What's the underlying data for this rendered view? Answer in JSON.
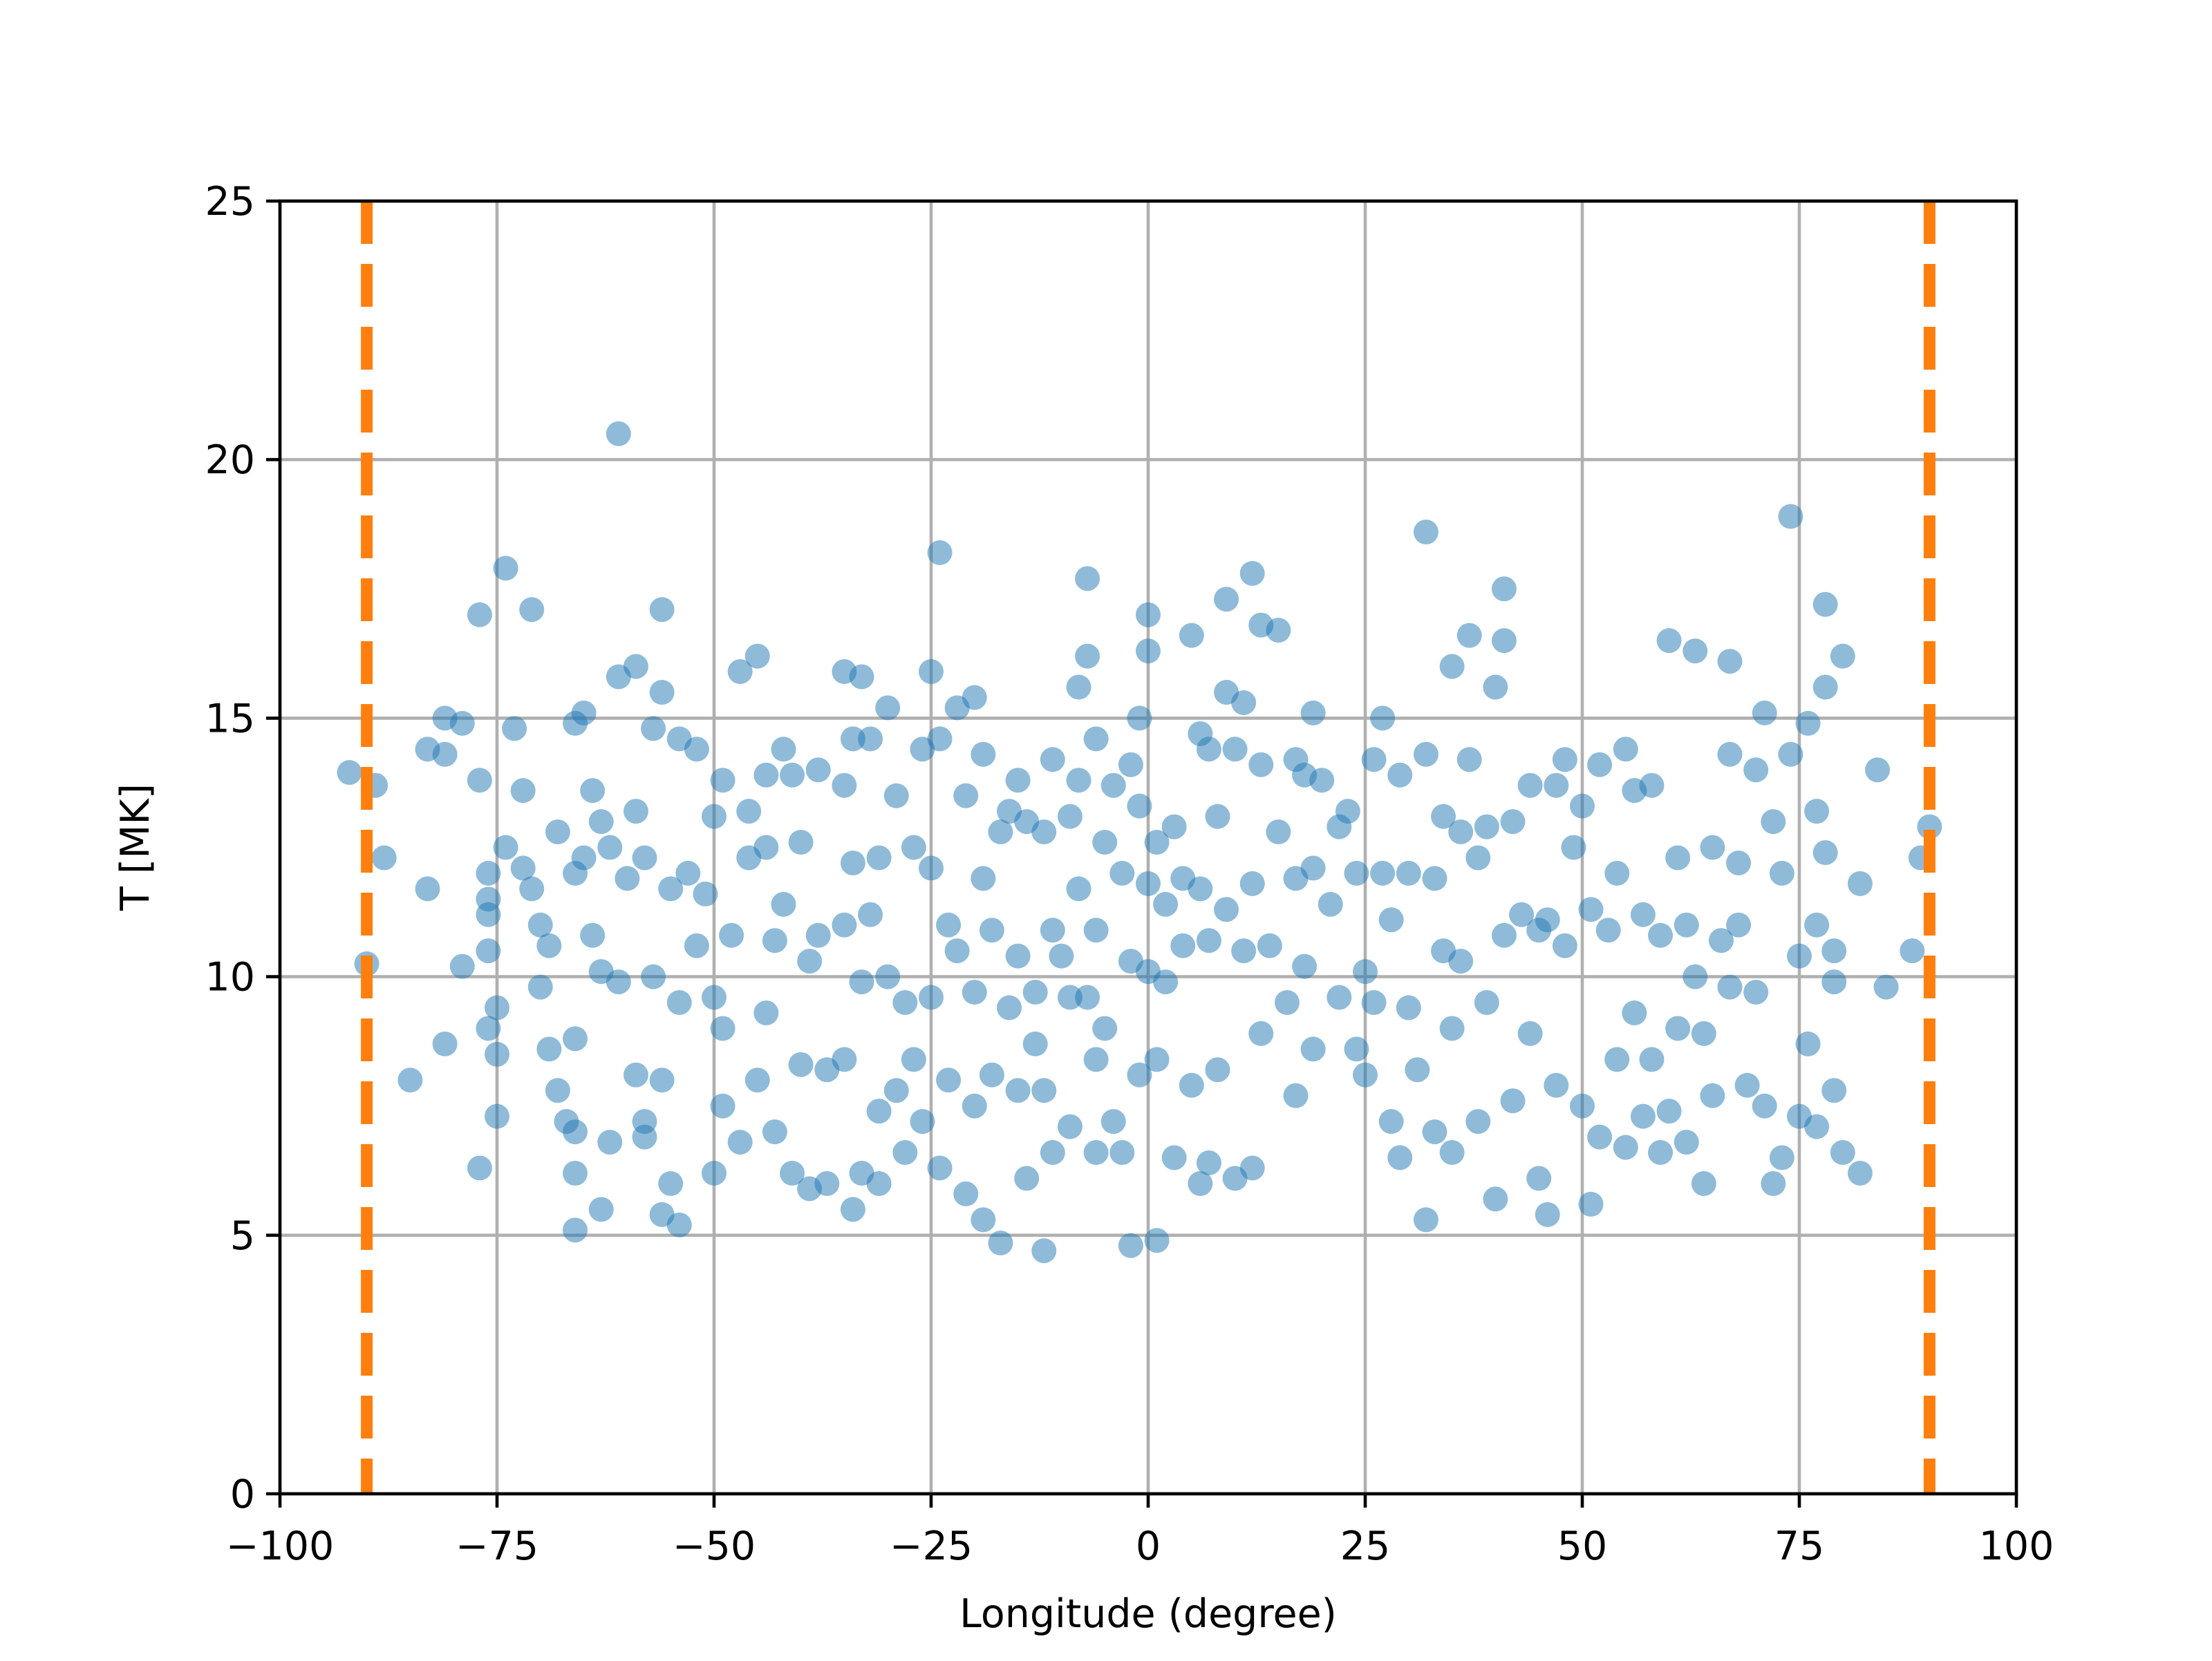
{
  "chart_data": {
    "type": "scatter",
    "xlabel": "Longitude (degree)",
    "ylabel": "T [MK]",
    "xlim": [
      -100,
      100
    ],
    "ylim": [
      0,
      25
    ],
    "xticks": [
      {
        "value": -100,
        "label": "−100"
      },
      {
        "value": -75,
        "label": "−75"
      },
      {
        "value": -50,
        "label": "−50"
      },
      {
        "value": -25,
        "label": "−25"
      },
      0,
      25,
      50,
      75,
      100
    ],
    "yticks": [
      0,
      5,
      10,
      15,
      20,
      25
    ],
    "grid": true,
    "color": "#1f77b4",
    "vlines": [
      -90,
      90
    ],
    "vline_color": "#ff7f0e",
    "x": [
      -92,
      -89,
      -88,
      -90,
      -85,
      -83,
      -83,
      -81,
      -81,
      -81,
      -79,
      -79,
      -77,
      -77,
      -77,
      -76,
      -76,
      -76,
      -76,
      -76,
      -75,
      -75,
      -75,
      -74,
      -74,
      -73,
      -72,
      -72,
      -71,
      -71,
      -70,
      -70,
      -69,
      -69,
      -68,
      -68,
      -67,
      -66,
      -66,
      -66,
      -66,
      -66,
      -66,
      -65,
      -65,
      -64,
      -64,
      -63,
      -63,
      -63,
      -62,
      -62,
      -61,
      -61,
      -61,
      -60,
      -59,
      -59,
      -59,
      -58,
      -58,
      -58,
      -57,
      -57,
      -56,
      -56,
      -56,
      -56,
      -55,
      -55,
      -54,
      -54,
      -54,
      -53,
      -52,
      -52,
      -51,
      -50,
      -50,
      -50,
      -49,
      -49,
      -49,
      -48,
      -47,
      -47,
      -46,
      -46,
      -45,
      -45,
      -44,
      -44,
      -44,
      -43,
      -43,
      -42,
      -42,
      -41,
      -41,
      -40,
      -40,
      -39,
      -39,
      -38,
      -38,
      -37,
      -37,
      -35,
      -35,
      -35,
      -35,
      -34,
      -34,
      -34,
      -33,
      -33,
      -33,
      -32,
      -32,
      -31,
      -31,
      -31,
      -30,
      -30,
      -29,
      -29,
      -28,
      -28,
      -27,
      -27,
      -26,
      -26,
      -25,
      -25,
      -25,
      -24,
      -24,
      -24,
      -23,
      -23,
      -22,
      -22,
      -21,
      -21,
      -20,
      -20,
      -20,
      -19,
      -19,
      -19,
      -18,
      -18,
      -17,
      -17,
      -16,
      -16,
      -15,
      -15,
      -15,
      -14,
      -14,
      -13,
      -13,
      -12,
      -12,
      -12,
      -11,
      -11,
      -11,
      -10,
      -9,
      -9,
      -9,
      -8,
      -8,
      -8,
      -7,
      -7,
      -7,
      -6,
      -6,
      -6,
      -6,
      -5,
      -5,
      -4,
      -4,
      -3,
      -3,
      -2,
      -2,
      -2,
      -1,
      -1,
      -1,
      0,
      0,
      0,
      0,
      1,
      1,
      1,
      2,
      2,
      3,
      3,
      4,
      4,
      5,
      5,
      6,
      6,
      6,
      7,
      7,
      7,
      8,
      8,
      9,
      9,
      9,
      10,
      10,
      11,
      11,
      12,
      12,
      12,
      13,
      13,
      13,
      14,
      15,
      15,
      16,
      17,
      17,
      17,
      18,
      18,
      19,
      19,
      19,
      20,
      21,
      22,
      22,
      23,
      24,
      24,
      25,
      25,
      26,
      26,
      27,
      27,
      28,
      28,
      29,
      29,
      30,
      30,
      31,
      32,
      32,
      32,
      33,
      33,
      34,
      34,
      35,
      35,
      35,
      36,
      36,
      37,
      37,
      38,
      38,
      39,
      39,
      40,
      40,
      41,
      41,
      41,
      42,
      42,
      43,
      44,
      44,
      45,
      45,
      46,
      46,
      47,
      47,
      48,
      48,
      49,
      50,
      50,
      51,
      51,
      52,
      52,
      53,
      54,
      54,
      55,
      55,
      56,
      56,
      57,
      57,
      58,
      58,
      59,
      59,
      60,
      60,
      61,
      61,
      62,
      62,
      63,
      63,
      64,
      64,
      65,
      65,
      66,
      67,
      67,
      67,
      68,
      68,
      69,
      70,
      70,
      71,
      71,
      72,
      72,
      73,
      73,
      74,
      74,
      75,
      75,
      76,
      76,
      77,
      77,
      77,
      78,
      78,
      78,
      79,
      79,
      79,
      80,
      80,
      82,
      82,
      84,
      85,
      88,
      89,
      90
    ],
    "values": [
      13.95,
      13.7,
      12.3,
      10.25,
      8,
      11.7,
      14.4,
      15,
      14.3,
      8.7,
      14.9,
      10.2,
      17,
      13.8,
      6.3,
      12,
      11.5,
      11.2,
      10.5,
      9,
      8.5,
      7.3,
      9.4,
      17.9,
      12.5,
      14.8,
      13.6,
      12.1,
      17.1,
      11.7,
      11,
      9.8,
      10.6,
      8.6,
      7.8,
      12.8,
      7.2,
      14.9,
      12,
      8.8,
      7,
      6.2,
      5.1,
      15.1,
      12.3,
      13.6,
      10.8,
      13,
      10.1,
      5.5,
      12.5,
      6.8,
      20.5,
      15.8,
      9.9,
      11.9,
      16,
      13.2,
      8.1,
      12.3,
      7.2,
      6.9,
      14.8,
      10,
      17.1,
      15.5,
      8,
      5.4,
      11.7,
      6,
      14.6,
      9.5,
      5.2,
      12,
      10.6,
      14.4,
      11.6,
      13.1,
      9.6,
      6.2,
      13.8,
      9,
      7.5,
      10.8,
      15.9,
      6.8,
      13.2,
      12.3,
      16.2,
      8,
      13.9,
      12.5,
      9.3,
      10.7,
      7,
      14.4,
      11.4,
      13.9,
      6.2,
      12.6,
      8.3,
      10.3,
      5.9,
      14,
      10.8,
      8.2,
      6,
      15.9,
      13.7,
      11,
      8.4,
      14.6,
      12.2,
      5.5,
      15.8,
      9.9,
      6.2,
      14.6,
      11.2,
      12.3,
      7.4,
      6,
      15.2,
      10,
      13.5,
      7.8,
      9.5,
      6.6,
      12.5,
      8.4,
      14.4,
      7.2,
      15.9,
      12.1,
      9.6,
      18.2,
      14.6,
      6.3,
      11,
      8,
      15.2,
      10.5,
      13.5,
      5.8,
      15.4,
      9.7,
      7.5,
      14.3,
      11.9,
      5.3,
      10.9,
      8.1,
      12.8,
      4.85,
      13.2,
      9.4,
      13.8,
      10.4,
      7.8,
      13,
      6.1,
      9.7,
      8.7,
      12.8,
      7.8,
      4.7,
      14.2,
      10.9,
      6.6,
      10.4,
      13.1,
      9.6,
      7.1,
      15.6,
      13.8,
      11.7,
      17.7,
      16.2,
      9.6,
      14.6,
      10.9,
      8.4,
      6.6,
      12.6,
      9,
      13.7,
      7.2,
      12,
      6.6,
      14.1,
      10.3,
      4.8,
      15,
      13.3,
      8.1,
      17,
      16.3,
      11.8,
      10.1,
      12.6,
      8.4,
      4.9,
      11.4,
      9.9,
      12.9,
      6.5,
      11.9,
      10.6,
      16.6,
      7.9,
      14.7,
      11.7,
      6,
      14.4,
      10.7,
      6.4,
      13.1,
      8.2,
      17.3,
      15.5,
      11.3,
      14.4,
      6.1,
      15.3,
      10.5,
      17.8,
      11.8,
      6.3,
      16.8,
      14.1,
      8.9,
      10.6,
      16.7,
      12.8,
      9.5,
      14.2,
      11.9,
      7.7,
      13.9,
      10.2,
      15.1,
      12.1,
      8.6,
      13.8,
      11.4,
      9.6,
      12.9,
      13.2,
      12,
      8.6,
      10.1,
      8.1,
      14.2,
      9.5,
      15,
      12,
      11.1,
      7.2,
      13.9,
      6.5,
      12,
      9.4,
      8.2,
      18.6,
      14.3,
      5.3,
      11.9,
      7,
      13.1,
      10.5,
      16,
      9,
      6.6,
      12.8,
      10.3,
      16.6,
      14.2,
      12.3,
      7.2,
      12.9,
      9.5,
      15.6,
      5.7,
      17.5,
      16.5,
      10.8,
      13,
      7.6,
      11.2,
      13.7,
      8.9,
      10.9,
      6.1,
      11.1,
      5.4,
      13.7,
      7.9,
      14.2,
      10.6,
      12.5,
      13.3,
      7.5,
      11.3,
      5.6,
      14.1,
      6.9,
      10.9,
      12,
      8.4,
      14.4,
      6.7,
      13.6,
      9.3,
      11.2,
      7.3,
      13.7,
      8.4,
      10.8,
      6.6,
      16.5,
      7.4,
      12.3,
      9,
      11,
      6.8,
      16.3,
      10,
      8.9,
      6,
      12.5,
      7.7,
      10.7,
      16.1,
      14.3,
      9.8,
      12.2,
      11,
      7.9,
      14,
      9.7,
      15.1,
      7.5,
      13,
      6,
      12,
      6.5,
      18.9,
      14.3,
      10.4,
      7.3,
      14.9,
      8.7,
      13.2,
      11,
      7.1,
      17.2,
      15.6,
      12.4,
      10.5,
      9.9,
      7.8,
      16.2,
      6.6,
      11.8,
      6.2,
      14,
      9.8,
      10.5,
      12.3,
      12.9
    ]
  }
}
